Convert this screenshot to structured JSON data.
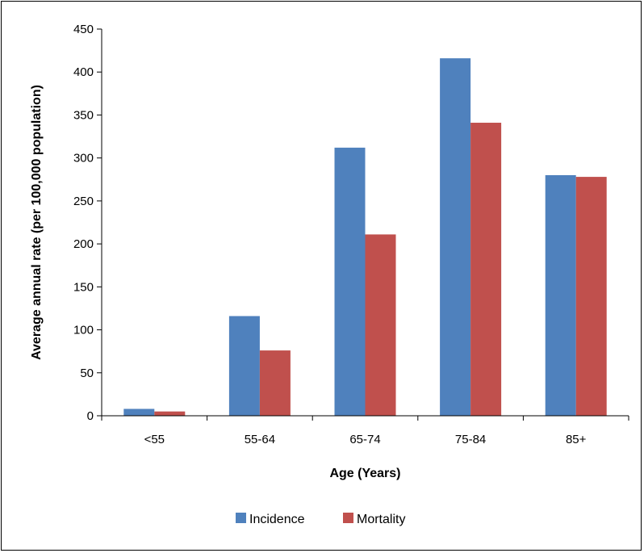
{
  "chart_data": {
    "type": "bar",
    "title": "",
    "xlabel": "Age (Years)",
    "ylabel": "Average annual rate (per 100,000 population)",
    "categories": [
      "<55",
      "55-64",
      "65-74",
      "75-84",
      "85+"
    ],
    "series": [
      {
        "name": "Incidence",
        "values": [
          8,
          116,
          312,
          416,
          280
        ],
        "color": "#4f81bd"
      },
      {
        "name": "Mortality",
        "values": [
          5,
          76,
          211,
          341,
          278
        ],
        "color": "#c0504d"
      }
    ],
    "ylim": [
      0,
      450
    ],
    "yticks": [
      0,
      50,
      100,
      150,
      200,
      250,
      300,
      350,
      400,
      450
    ],
    "grid": false,
    "legend_position": "bottom"
  }
}
